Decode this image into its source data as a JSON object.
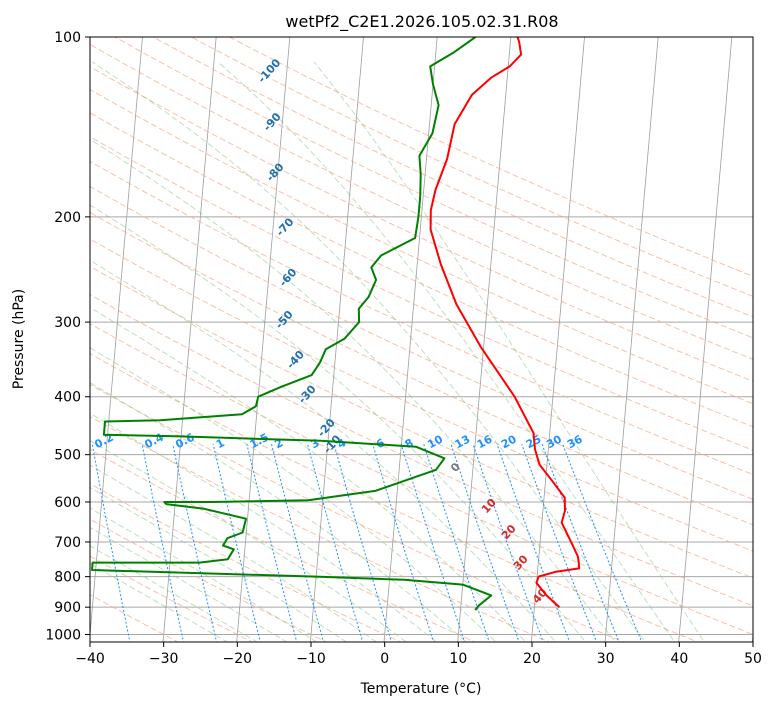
{
  "chart_data": {
    "type": "line",
    "subtype": "skew-t log-p diagram",
    "title": "wetPf2_C2E1.2026.105.02.31.R08",
    "xlabel": "Temperature (°C)",
    "ylabel": "Pressure (hPa)",
    "xlim": [
      -40,
      50
    ],
    "ylim": [
      1050,
      100
    ],
    "y_scale": "log",
    "grid": true,
    "x_ticks": [
      "−40",
      "−30",
      "−20",
      "−10",
      "0",
      "10",
      "20",
      "30",
      "40",
      "50"
    ],
    "y_ticks": [
      {
        "p": 100,
        "label": "100"
      },
      {
        "p": 200,
        "label": "200"
      },
      {
        "p": 300,
        "label": "300"
      },
      {
        "p": 400,
        "label": "400"
      },
      {
        "p": 500,
        "label": "500"
      },
      {
        "p": 600,
        "label": "600"
      },
      {
        "p": 700,
        "label": "700"
      },
      {
        "p": 800,
        "label": "800"
      },
      {
        "p": 900,
        "label": "900"
      },
      {
        "p": 1000,
        "label": "1000"
      }
    ],
    "series": [
      {
        "kind": "temperature",
        "color": "#ff0000",
        "points": [
          [
            23.4,
            900
          ],
          [
            21.5,
            860
          ],
          [
            20.0,
            820
          ],
          [
            20.2,
            800
          ],
          [
            22.5,
            785
          ],
          [
            25.6,
            775
          ],
          [
            25.5,
            760
          ],
          [
            25.3,
            740
          ],
          [
            24.2,
            700
          ],
          [
            22.7,
            650
          ],
          [
            23.0,
            620
          ],
          [
            22.8,
            590
          ],
          [
            21.0,
            555
          ],
          [
            19.0,
            520
          ],
          [
            18.2,
            490
          ],
          [
            17.8,
            460
          ],
          [
            14.8,
            400
          ],
          [
            9.6,
            330
          ],
          [
            5.8,
            280
          ],
          [
            3.2,
            240
          ],
          [
            1.4,
            210
          ],
          [
            1.2,
            195
          ],
          [
            1.6,
            180
          ],
          [
            2.8,
            160
          ],
          [
            3.4,
            140
          ],
          [
            5.4,
            125
          ],
          [
            7.8,
            117
          ],
          [
            10.2,
            112
          ],
          [
            11.6,
            107
          ],
          [
            11.2,
            102
          ],
          [
            10.9,
            100
          ]
        ]
      },
      {
        "kind": "dewpoint",
        "color": "#008000",
        "points": [
          [
            12.0,
            910
          ],
          [
            12.4,
            895
          ],
          [
            14.0,
            860
          ],
          [
            10.0,
            825
          ],
          [
            2.0,
            810
          ],
          [
            -10.0,
            800
          ],
          [
            -25.0,
            790
          ],
          [
            -40.5,
            780
          ],
          [
            -40.5,
            758
          ],
          [
            -26.0,
            758
          ],
          [
            -22.2,
            748
          ],
          [
            -21.5,
            720
          ],
          [
            -23.0,
            710
          ],
          [
            -22.5,
            690
          ],
          [
            -20.5,
            675
          ],
          [
            -20.2,
            640
          ],
          [
            -26.0,
            616
          ],
          [
            -31.2,
            605
          ],
          [
            -31.5,
            600
          ],
          [
            -25.0,
            600
          ],
          [
            -12.0,
            596
          ],
          [
            -3.0,
            575
          ],
          [
            5.0,
            530
          ],
          [
            6.0,
            507
          ],
          [
            2.0,
            485
          ],
          [
            -11.0,
            474
          ],
          [
            -30.0,
            466
          ],
          [
            -40.5,
            463
          ],
          [
            -40.5,
            440
          ],
          [
            -33.0,
            438
          ],
          [
            -22.0,
            428
          ],
          [
            -20.2,
            415
          ],
          [
            -20.0,
            400
          ],
          [
            -17.0,
            385
          ],
          [
            -13.0,
            368
          ],
          [
            -12.0,
            350
          ],
          [
            -11.4,
            333
          ],
          [
            -9.0,
            320
          ],
          [
            -7.2,
            300
          ],
          [
            -7.4,
            285
          ],
          [
            -6.2,
            272
          ],
          [
            -5.4,
            255
          ],
          [
            -6.2,
            243
          ],
          [
            -5.0,
            232
          ],
          [
            -0.6,
            217
          ],
          [
            -0.4,
            200
          ],
          [
            -0.4,
            185
          ],
          [
            -0.6,
            170
          ],
          [
            -1.0,
            158
          ],
          [
            0.5,
            145
          ],
          [
            1.0,
            130
          ],
          [
            0.0,
            120
          ],
          [
            -0.6,
            112
          ],
          [
            2.5,
            106
          ],
          [
            5.2,
            100
          ]
        ]
      }
    ],
    "dry_adiabat_labels": [
      "-100",
      "-90",
      "-80",
      "-70",
      "-60",
      "-50",
      "-40",
      "-30",
      "-20",
      "-10"
    ],
    "moist_adiabat_labels": [
      "0",
      "10",
      "20",
      "30",
      "40"
    ],
    "mixing_ratio_labels": [
      "0.1",
      "0.2",
      "0.4",
      "0.6",
      "1",
      "1.5",
      "2",
      "3",
      "4",
      "6",
      "8",
      "10",
      "13",
      "16",
      "20",
      "25",
      "30",
      "36"
    ],
    "colors": {
      "isotherm": "#9e9e9e",
      "isobar": "#a8a8a8",
      "dry_adiabat": "#f4a582",
      "moist_adiabat": "#7fbf7f",
      "mixing_ratio": "#1e90ff"
    }
  }
}
